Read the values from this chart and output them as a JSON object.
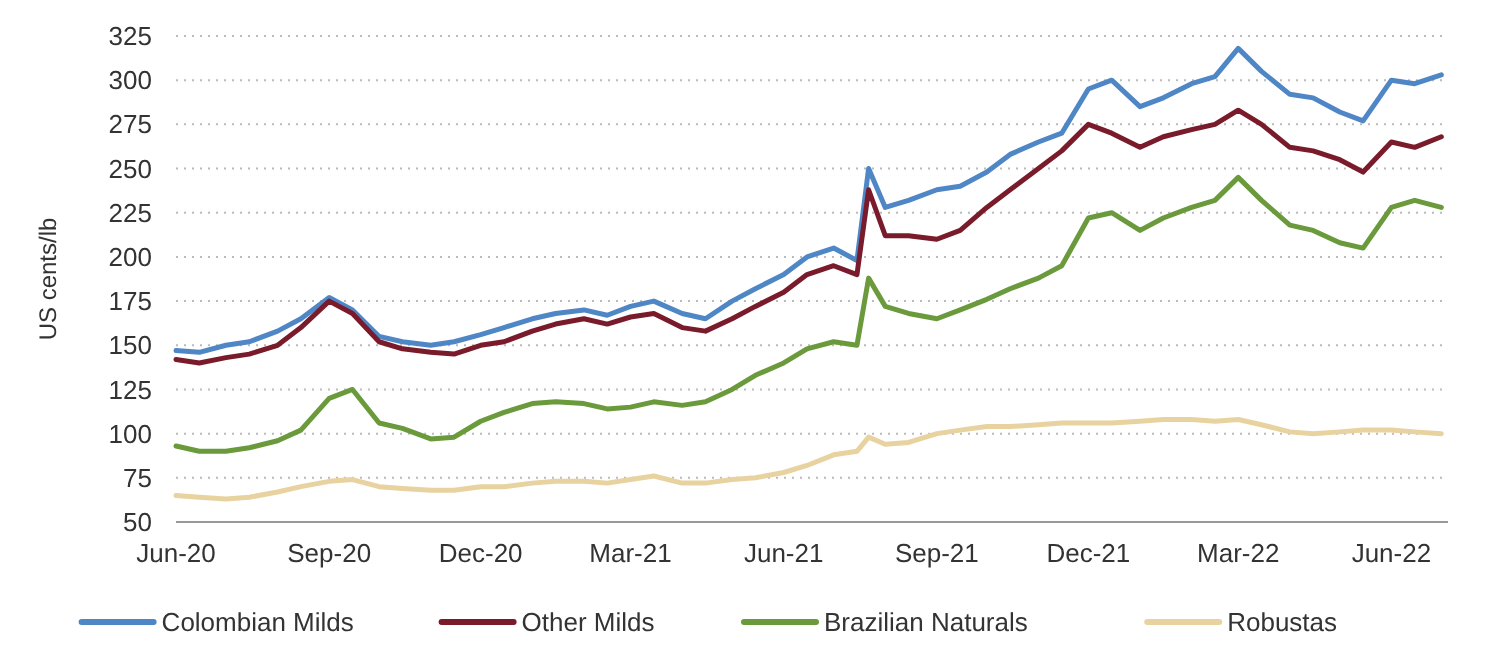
{
  "chart_data": {
    "type": "line",
    "ylabel": "US cents/lb",
    "xlim": [
      "2020-06-01",
      "2022-07-05"
    ],
    "ylim": [
      50,
      325
    ],
    "yticks": [
      50,
      75,
      100,
      125,
      150,
      175,
      200,
      225,
      250,
      275,
      300,
      325
    ],
    "xticks": [
      {
        "value": "2020-06-01",
        "label": "Jun-20"
      },
      {
        "value": "2020-09-01",
        "label": "Sep-20"
      },
      {
        "value": "2020-12-01",
        "label": "Dec-20"
      },
      {
        "value": "2021-03-01",
        "label": "Mar-21"
      },
      {
        "value": "2021-06-01",
        "label": "Jun-21"
      },
      {
        "value": "2021-09-01",
        "label": "Sep-21"
      },
      {
        "value": "2021-12-01",
        "label": "Dec-21"
      },
      {
        "value": "2022-03-01",
        "label": "Mar-22"
      },
      {
        "value": "2022-06-01",
        "label": "Jun-22"
      }
    ],
    "grid": "y",
    "legend": "bottom",
    "marker": "none",
    "line_style": "solid",
    "x": [
      "2020-06-01",
      "2020-06-15",
      "2020-07-01",
      "2020-07-15",
      "2020-08-01",
      "2020-08-15",
      "2020-09-01",
      "2020-09-15",
      "2020-10-01",
      "2020-10-15",
      "2020-11-01",
      "2020-11-15",
      "2020-12-01",
      "2020-12-15",
      "2021-01-01",
      "2021-01-15",
      "2021-02-01",
      "2021-02-15",
      "2021-03-01",
      "2021-03-15",
      "2021-04-01",
      "2021-04-15",
      "2021-05-01",
      "2021-05-15",
      "2021-06-01",
      "2021-06-15",
      "2021-07-01",
      "2021-07-15",
      "2021-07-22",
      "2021-08-01",
      "2021-08-15",
      "2021-09-01",
      "2021-09-15",
      "2021-10-01",
      "2021-10-15",
      "2021-11-01",
      "2021-11-15",
      "2021-12-01",
      "2021-12-15",
      "2022-01-01",
      "2022-01-15",
      "2022-02-01",
      "2022-02-15",
      "2022-03-01",
      "2022-03-15",
      "2022-04-01",
      "2022-04-15",
      "2022-05-01",
      "2022-05-15",
      "2022-06-01",
      "2022-06-15",
      "2022-07-01"
    ],
    "series": [
      {
        "name": "Colombian Milds",
        "color": "#4f86c6",
        "values": [
          147,
          146,
          150,
          152,
          158,
          165,
          177,
          170,
          155,
          152,
          150,
          152,
          156,
          160,
          165,
          168,
          170,
          167,
          172,
          175,
          168,
          165,
          175,
          182,
          190,
          200,
          205,
          198,
          250,
          228,
          232,
          238,
          240,
          248,
          258,
          265,
          270,
          295,
          300,
          285,
          290,
          298,
          302,
          318,
          305,
          292,
          290,
          282,
          277,
          300,
          298,
          303
        ]
      },
      {
        "name": "Other Milds",
        "color": "#7a1b2b",
        "values": [
          142,
          140,
          143,
          145,
          150,
          160,
          175,
          168,
          152,
          148,
          146,
          145,
          150,
          152,
          158,
          162,
          165,
          162,
          166,
          168,
          160,
          158,
          165,
          172,
          180,
          190,
          195,
          190,
          238,
          212,
          212,
          210,
          215,
          228,
          238,
          250,
          260,
          275,
          270,
          262,
          268,
          272,
          275,
          283,
          275,
          262,
          260,
          255,
          248,
          265,
          262,
          268
        ]
      },
      {
        "name": "Brazilian Naturals",
        "color": "#6a9a3c",
        "values": [
          93,
          90,
          90,
          92,
          96,
          102,
          120,
          125,
          106,
          103,
          97,
          98,
          107,
          112,
          117,
          118,
          117,
          114,
          115,
          118,
          116,
          118,
          125,
          133,
          140,
          148,
          152,
          150,
          188,
          172,
          168,
          165,
          170,
          176,
          182,
          188,
          195,
          222,
          225,
          215,
          222,
          228,
          232,
          245,
          232,
          218,
          215,
          208,
          205,
          228,
          232,
          228
        ]
      },
      {
        "name": "Robustas",
        "color": "#e8d3a0",
        "values": [
          65,
          64,
          63,
          64,
          67,
          70,
          73,
          74,
          70,
          69,
          68,
          68,
          70,
          70,
          72,
          73,
          73,
          72,
          74,
          76,
          72,
          72,
          74,
          75,
          78,
          82,
          88,
          90,
          98,
          94,
          95,
          100,
          102,
          104,
          104,
          105,
          106,
          106,
          106,
          107,
          108,
          108,
          107,
          108,
          105,
          101,
          100,
          101,
          102,
          102,
          101,
          100
        ]
      }
    ]
  }
}
